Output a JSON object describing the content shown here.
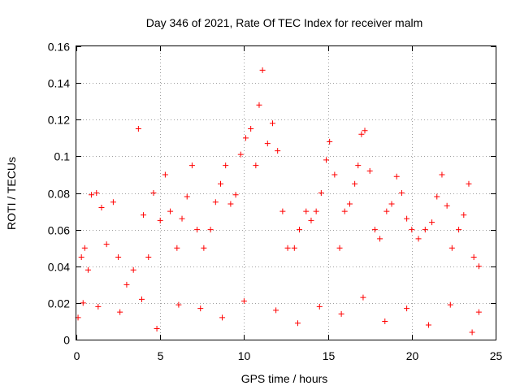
{
  "chart_data": {
    "type": "scatter",
    "title": "Day 346 of 2021, Rate Of TEC Index for receiver malm",
    "xlabel": "GPS time / hours",
    "ylabel": "ROTI / TECUs",
    "xlim": [
      0,
      25
    ],
    "ylim": [
      0,
      0.16
    ],
    "xticks": [
      0,
      5,
      10,
      15,
      20,
      25
    ],
    "xtick_labels": [
      "0",
      "5",
      "10",
      "15",
      "20",
      "25"
    ],
    "yticks": [
      0,
      0.02,
      0.04,
      0.06,
      0.08,
      0.1,
      0.12,
      0.14,
      0.16
    ],
    "ytick_labels": [
      "0",
      "0.02",
      "0.04",
      "0.06",
      "0.08",
      "0.1",
      "0.12",
      "0.14",
      "0.16"
    ],
    "grid": true,
    "marker": "+",
    "color": "#ff0000",
    "series": [
      {
        "name": "ROTI",
        "points": [
          [
            0.1,
            0.012
          ],
          [
            0.3,
            0.045
          ],
          [
            0.5,
            0.05
          ],
          [
            0.7,
            0.038
          ],
          [
            0.9,
            0.079
          ],
          [
            1.2,
            0.08
          ],
          [
            1.5,
            0.072
          ],
          [
            1.8,
            0.052
          ],
          [
            2.2,
            0.075
          ],
          [
            2.5,
            0.045
          ],
          [
            3.0,
            0.03
          ],
          [
            3.4,
            0.038
          ],
          [
            3.7,
            0.115
          ],
          [
            4.0,
            0.068
          ],
          [
            4.3,
            0.045
          ],
          [
            4.6,
            0.08
          ],
          [
            5.0,
            0.065
          ],
          [
            5.3,
            0.09
          ],
          [
            5.6,
            0.07
          ],
          [
            6.0,
            0.05
          ],
          [
            6.3,
            0.066
          ],
          [
            6.6,
            0.078
          ],
          [
            6.9,
            0.095
          ],
          [
            7.2,
            0.06
          ],
          [
            7.6,
            0.05
          ],
          [
            8.0,
            0.06
          ],
          [
            8.3,
            0.075
          ],
          [
            8.6,
            0.085
          ],
          [
            8.9,
            0.095
          ],
          [
            9.2,
            0.074
          ],
          [
            9.5,
            0.079
          ],
          [
            9.8,
            0.101
          ],
          [
            10.1,
            0.11
          ],
          [
            10.4,
            0.115
          ],
          [
            10.7,
            0.095
          ],
          [
            10.9,
            0.128
          ],
          [
            11.1,
            0.147
          ],
          [
            11.4,
            0.107
          ],
          [
            11.7,
            0.118
          ],
          [
            12.0,
            0.103
          ],
          [
            12.3,
            0.07
          ],
          [
            12.6,
            0.05
          ],
          [
            13.0,
            0.05
          ],
          [
            13.3,
            0.06
          ],
          [
            13.7,
            0.07
          ],
          [
            14.0,
            0.065
          ],
          [
            14.3,
            0.07
          ],
          [
            14.6,
            0.08
          ],
          [
            14.9,
            0.098
          ],
          [
            15.1,
            0.108
          ],
          [
            15.4,
            0.09
          ],
          [
            15.7,
            0.05
          ],
          [
            16.0,
            0.07
          ],
          [
            16.3,
            0.074
          ],
          [
            16.6,
            0.085
          ],
          [
            16.8,
            0.095
          ],
          [
            17.0,
            0.112
          ],
          [
            17.2,
            0.114
          ],
          [
            17.5,
            0.092
          ],
          [
            17.8,
            0.06
          ],
          [
            18.1,
            0.055
          ],
          [
            18.5,
            0.07
          ],
          [
            18.8,
            0.074
          ],
          [
            19.1,
            0.089
          ],
          [
            19.4,
            0.08
          ],
          [
            19.7,
            0.066
          ],
          [
            20.0,
            0.06
          ],
          [
            20.4,
            0.055
          ],
          [
            20.8,
            0.06
          ],
          [
            21.2,
            0.064
          ],
          [
            21.5,
            0.078
          ],
          [
            21.8,
            0.09
          ],
          [
            22.1,
            0.073
          ],
          [
            22.4,
            0.05
          ],
          [
            22.8,
            0.06
          ],
          [
            23.1,
            0.068
          ],
          [
            23.4,
            0.085
          ],
          [
            23.7,
            0.045
          ],
          [
            24.0,
            0.04
          ],
          [
            0.4,
            0.02
          ],
          [
            1.3,
            0.018
          ],
          [
            2.6,
            0.015
          ],
          [
            3.9,
            0.022
          ],
          [
            4.8,
            0.006
          ],
          [
            6.1,
            0.019
          ],
          [
            7.4,
            0.017
          ],
          [
            8.7,
            0.012
          ],
          [
            10.0,
            0.021
          ],
          [
            11.9,
            0.016
          ],
          [
            13.2,
            0.009
          ],
          [
            14.5,
            0.018
          ],
          [
            15.8,
            0.014
          ],
          [
            17.1,
            0.023
          ],
          [
            18.4,
            0.01
          ],
          [
            19.7,
            0.017
          ],
          [
            21.0,
            0.008
          ],
          [
            22.3,
            0.019
          ],
          [
            23.6,
            0.004
          ],
          [
            24.0,
            0.015
          ]
        ]
      }
    ]
  }
}
